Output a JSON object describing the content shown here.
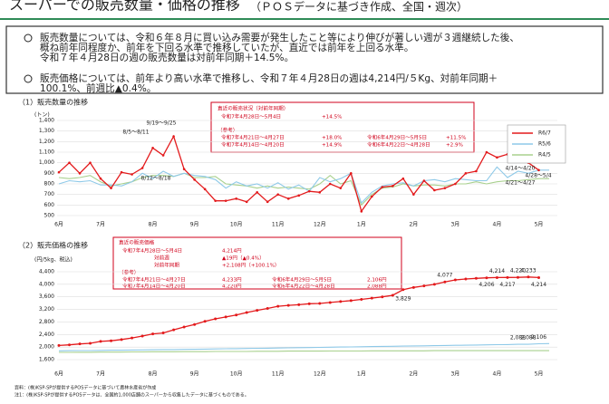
{
  "header": {
    "title": "スーパーでの販売数量・価格の推移",
    "subtitle": "（ＰＯＳデータに基づき作成、全国・週次）"
  },
  "bullets": [
    [
      "販売数量については、令和６年８月に買い込み需要が発生したこと等により伸びが著しい週が３週継続した後、",
      "概ね前年同程度か、前年を下回る水準で推移していたが、直近では前年を上回る水準。",
      "令和７年４月28日の週の販売数量は対前年同期＋14.5%。"
    ],
    [
      "販売価格については、前年より高い水準で推移し、令和７年４月28日の週は4,214円/５Kg、対前年同期＋",
      "100.1%、前週比▲0.4%。"
    ]
  ],
  "notes": [
    "資料：(株)KSP-SPが提供するPOSデータに基づいて農林水産省が作成",
    "注1：(株)KSP-SPが提供するPOSデータは、全国約1,000店舗のスーパーから収集したデータに基づくものである。"
  ],
  "chart_data": [
    {
      "type": "line",
      "title": "（1）販売数量の推移",
      "y_label": "(トン)",
      "categories": [
        "6月",
        null,
        null,
        null,
        "7月",
        null,
        null,
        null,
        null,
        "8月",
        null,
        null,
        null,
        "9月",
        null,
        null,
        null,
        "10月",
        null,
        null,
        null,
        "11月",
        null,
        null,
        null,
        "12月",
        null,
        null,
        null,
        "1月",
        null,
        null,
        null,
        null,
        "2月",
        null,
        null,
        null,
        "3月",
        null,
        null,
        null,
        "4月",
        null,
        null,
        null,
        "5月",
        null
      ],
      "series": [
        {
          "name": "R6/7",
          "color": "#e31a1c",
          "values": [
            910,
            1000,
            900,
            1000,
            850,
            760,
            910,
            890,
            950,
            1140,
            1070,
            1250,
            940,
            840,
            750,
            640,
            640,
            660,
            630,
            720,
            630,
            700,
            660,
            690,
            730,
            720,
            800,
            760,
            900,
            540,
            680,
            770,
            780,
            850,
            700,
            830,
            740,
            760,
            800,
            900,
            920,
            1100,
            1050,
            1080,
            1050,
            1000,
            930,
            null
          ]
        },
        {
          "name": "R5/6",
          "color": "#8ec9e8",
          "values": [
            800,
            830,
            820,
            830,
            790,
            790,
            780,
            820,
            900,
            850,
            920,
            870,
            900,
            880,
            870,
            840,
            760,
            820,
            780,
            800,
            760,
            810,
            750,
            790,
            730,
            860,
            820,
            850,
            900,
            620,
            720,
            780,
            800,
            810,
            780,
            830,
            840,
            820,
            850,
            840,
            830,
            830,
            960,
            860,
            920,
            900,
            930,
            930
          ]
        },
        {
          "name": "R4/5",
          "color": "#a8d08d",
          "values": [
            860,
            850,
            860,
            880,
            820,
            780,
            800,
            820,
            860,
            880,
            880,
            870,
            900,
            860,
            860,
            870,
            800,
            790,
            780,
            760,
            780,
            760,
            770,
            760,
            750,
            800,
            880,
            800,
            830,
            600,
            700,
            760,
            770,
            800,
            780,
            790,
            790,
            780,
            800,
            800,
            820,
            800,
            820,
            830,
            830,
            840,
            850,
            850
          ]
        }
      ],
      "ylim": [
        500,
        1400
      ],
      "yticks": [
        500,
        600,
        700,
        800,
        900,
        {
          "value": 1000,
          "label": "1,000"
        },
        {
          "value": 1100,
          "label": "1,100"
        },
        {
          "value": 1200,
          "label": "1,200"
        },
        {
          "value": 1300,
          "label": "1,300"
        },
        {
          "value": 1400,
          "label": "1,400"
        }
      ],
      "grid": true,
      "legend": "upper right",
      "annotations": [
        "8/5～8/11",
        "9/19～9/25",
        "8/12～8/18",
        "4/14～4/20",
        "4/28～5/4",
        "4/21～4/27"
      ],
      "info_box": {
        "title": "直近の販売状況（対前年同期）",
        "period": "令和7年4月28日～5月4日",
        "value": "+14.5%",
        "ref": "（参考）",
        "rows": [
          [
            "令和7年4月21日～4月27日",
            "+18.0%",
            "令和6年4月29日～5月5日",
            "+11.5%"
          ],
          [
            "令和7年4月14日～4月20日",
            "+14.9%",
            "令和6年4月22日～4月28日",
            "+2.9%"
          ]
        ]
      }
    },
    {
      "type": "line",
      "title": "（2）販売価格の推移",
      "y_label": "(円/5kg、税込)",
      "categories": [
        "6月",
        null,
        null,
        null,
        "7月",
        null,
        null,
        null,
        null,
        "8月",
        null,
        null,
        null,
        "9月",
        null,
        null,
        null,
        "10月",
        null,
        null,
        null,
        "11月",
        null,
        null,
        null,
        "12月",
        null,
        null,
        null,
        "1月",
        null,
        null,
        null,
        null,
        "2月",
        null,
        null,
        null,
        "3月",
        null,
        null,
        null,
        "4月",
        null,
        null,
        null,
        "5月",
        null
      ],
      "series": [
        {
          "color": "#e31a1c",
          "values": [
            2050,
            2070,
            2100,
            2120,
            2180,
            2200,
            2240,
            2290,
            2350,
            2420,
            2450,
            2550,
            2640,
            2720,
            2820,
            2900,
            2960,
            3020,
            3100,
            3170,
            3230,
            3300,
            3330,
            3350,
            3380,
            3390,
            3420,
            3450,
            3480,
            3520,
            3560,
            3600,
            3650,
            3829,
            3900,
            3950,
            4000,
            4077,
            4140,
            4170,
            4190,
            4206,
            4214,
            4217,
            4220,
            4233,
            4214,
            null
          ],
          "value_labels": [
            null,
            null,
            null,
            null,
            null,
            null,
            null,
            null,
            null,
            null,
            null,
            null,
            null,
            null,
            null,
            null,
            null,
            null,
            null,
            null,
            null,
            null,
            null,
            null,
            null,
            null,
            null,
            null,
            null,
            null,
            null,
            null,
            null,
            "3,829",
            null,
            null,
            null,
            "4,077",
            null,
            null,
            null,
            "4,206",
            "4,214",
            "4,217",
            "4,220",
            "4,233",
            "4,214",
            null
          ]
        },
        {
          "color": "#8ec9e8",
          "values": [
            1880,
            1885,
            1890,
            1890,
            1895,
            1900,
            1900,
            1905,
            1910,
            1915,
            1920,
            1920,
            1925,
            1930,
            1935,
            1940,
            1945,
            1950,
            1955,
            1960,
            1965,
            1970,
            1975,
            1980,
            1985,
            1990,
            1995,
            2000,
            2005,
            2010,
            2015,
            2020,
            2025,
            2030,
            2035,
            2040,
            2045,
            2050,
            2055,
            2060,
            2065,
            2070,
            2075,
            2080,
            2088,
            2088,
            2106,
            2110
          ],
          "value_labels": [
            null,
            null,
            null,
            null,
            null,
            null,
            null,
            null,
            null,
            null,
            null,
            null,
            null,
            null,
            null,
            null,
            null,
            null,
            null,
            null,
            null,
            null,
            null,
            null,
            null,
            null,
            null,
            null,
            null,
            null,
            null,
            null,
            null,
            null,
            null,
            null,
            null,
            null,
            null,
            null,
            null,
            null,
            null,
            null,
            "2,088",
            "2,088",
            "2,106",
            null
          ]
        },
        {
          "color": "#a8d08d",
          "values": [
            1830,
            1830,
            1835,
            1835,
            1840,
            1840,
            1840,
            1845,
            1845,
            1850,
            1850,
            1850,
            1855,
            1855,
            1855,
            1860,
            1860,
            1860,
            1860,
            1865,
            1865,
            1865,
            1870,
            1870,
            1870,
            1870,
            1875,
            1875,
            1875,
            1875,
            1880,
            1880,
            1880,
            1880,
            1880,
            1880,
            1885,
            1885,
            1885,
            1885,
            1885,
            1885,
            1885,
            1885,
            1885,
            1885,
            1885,
            1885
          ]
        }
      ],
      "ylim": [
        1600,
        4400
      ],
      "yticks": [
        {
          "value": 1600,
          "label": "1,600"
        },
        {
          "value": 2000,
          "label": "2,000"
        },
        {
          "value": 2400,
          "label": "2,400"
        },
        {
          "value": 2800,
          "label": "2,800"
        },
        {
          "value": 3200,
          "label": "3,200"
        },
        {
          "value": 3600,
          "label": "3,600"
        },
        {
          "value": 4000,
          "label": "4,000"
        },
        {
          "value": 4400,
          "label": "4,400"
        }
      ],
      "grid": true,
      "info_box": {
        "title": "直近の販売価格",
        "period": "令和7年4月28日～5月4日",
        "value": "4,214円",
        "wow_label": "対前週",
        "wow": "▲19円（▲0.4%）",
        "yoy_label": "対前年同期",
        "yoy": "+2,108円（+100.1%）",
        "ref": "（参考）",
        "rows": [
          [
            "令和7年4月21日～4月27日",
            "4,233円",
            "令和6年4月29日～5月5日",
            "2,106円"
          ],
          [
            "令和7年4月14日～4月20日",
            "4,220円",
            "令和6年4月22日～4月28日",
            "2,088円"
          ]
        ]
      }
    }
  ]
}
